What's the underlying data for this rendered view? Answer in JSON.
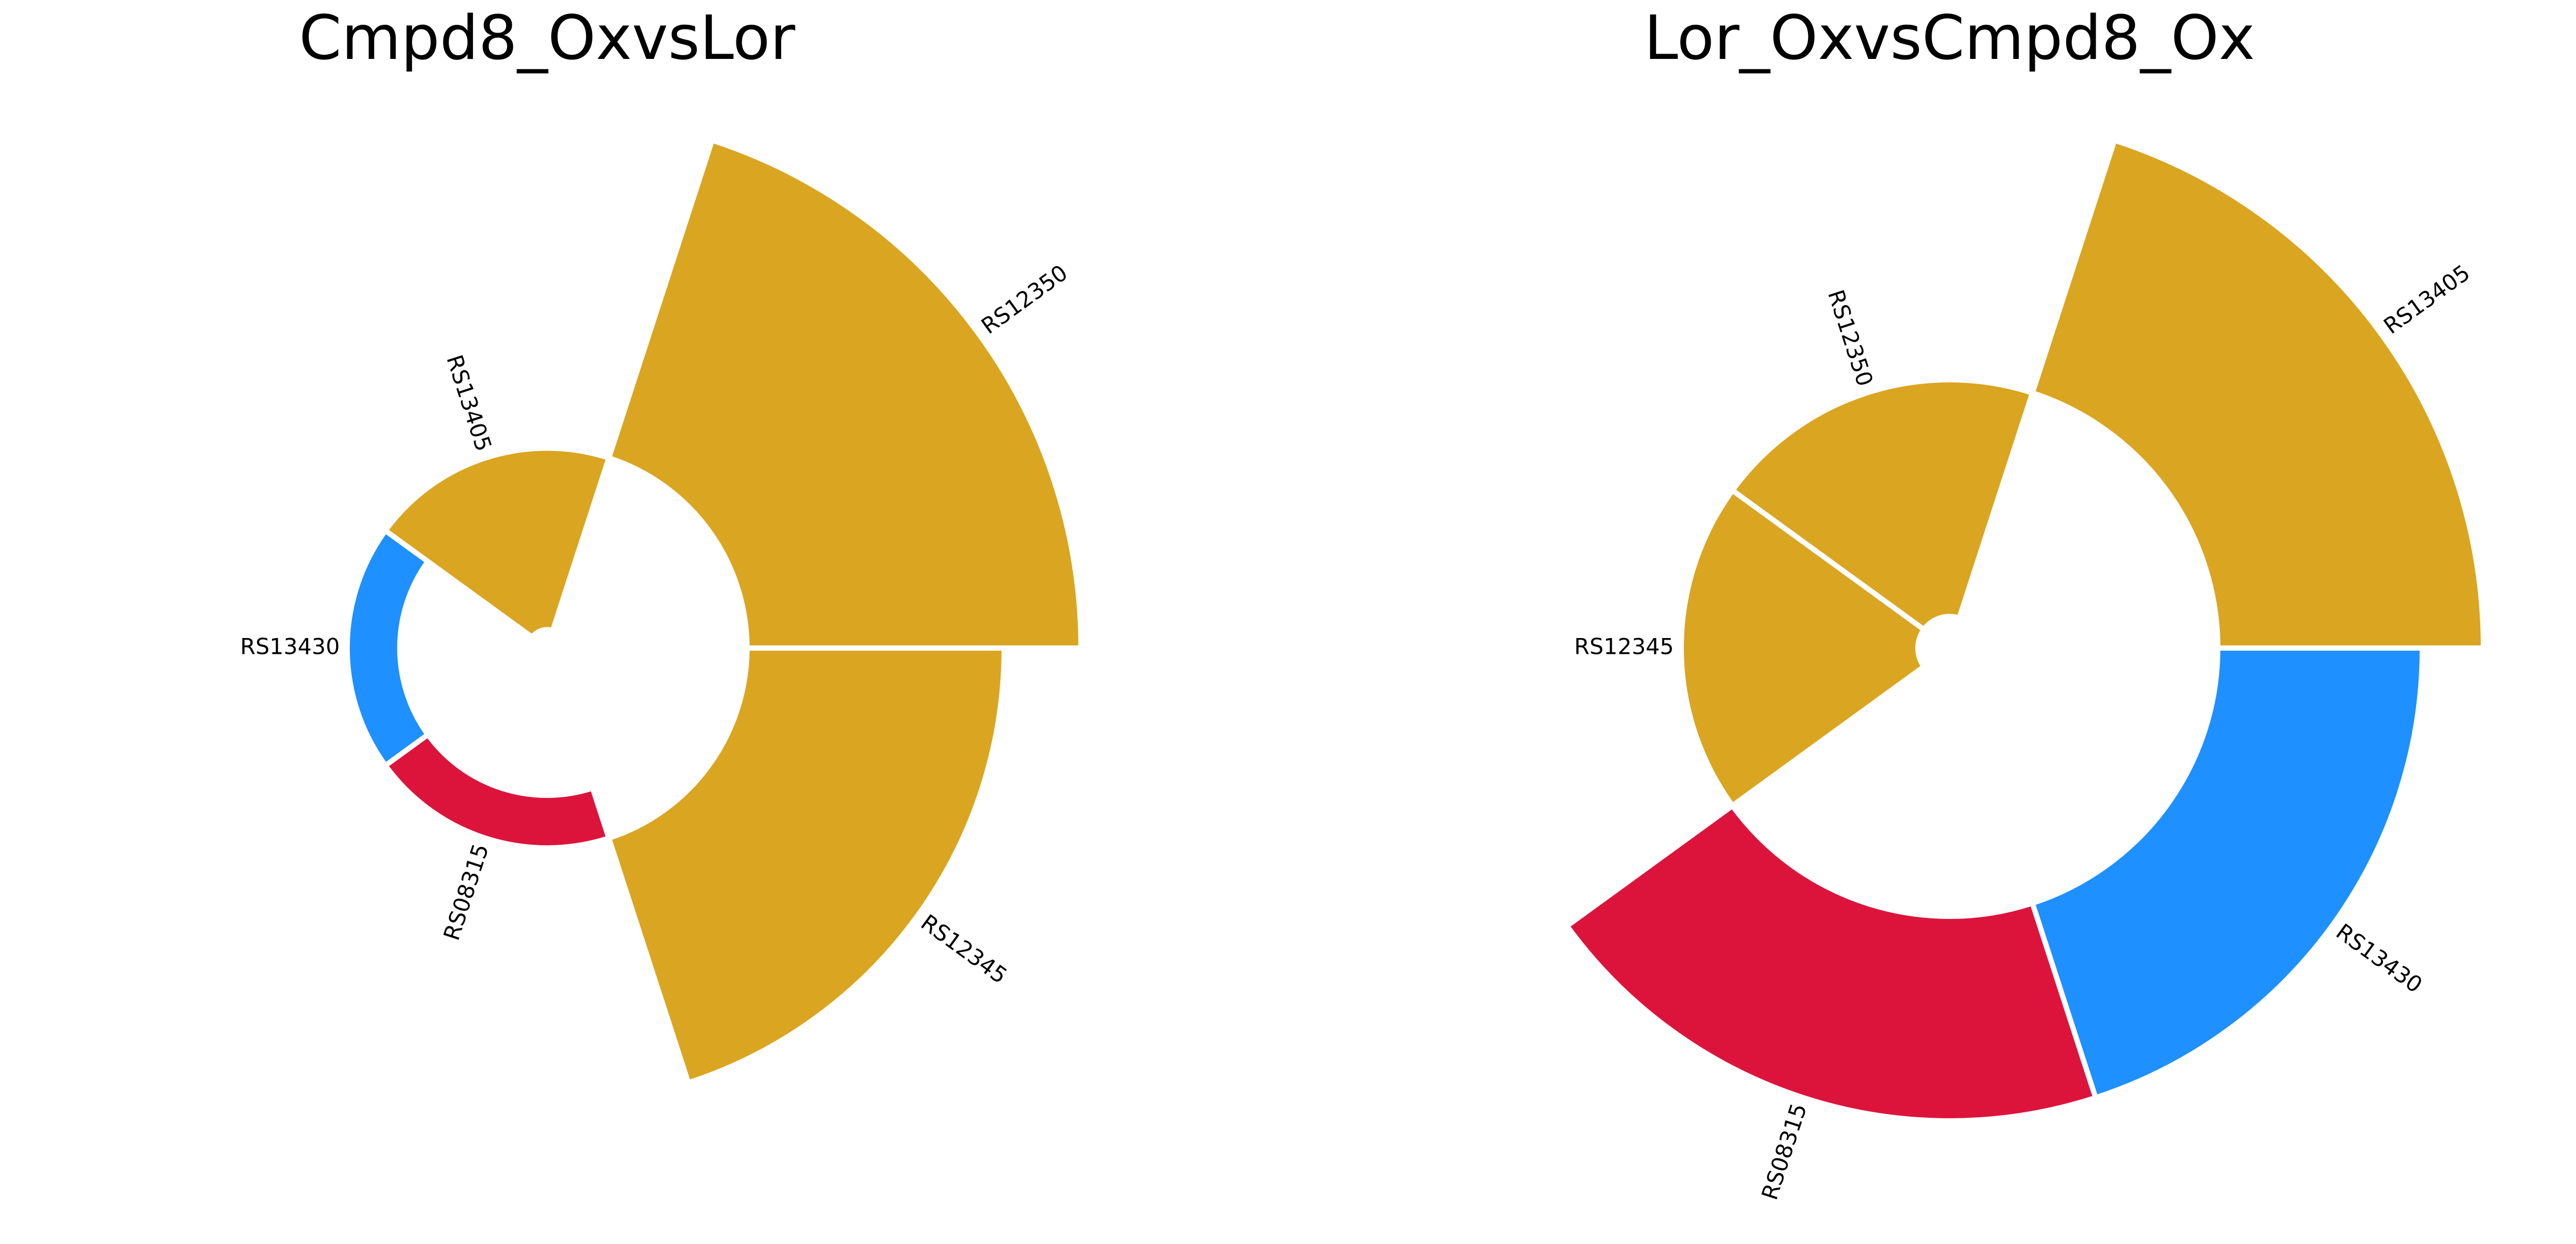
{
  "chart_data": [
    {
      "type": "radial-bar",
      "title": "Cmpd8_OxvsLor",
      "categories": [
        "RS12350",
        "RS12345",
        "RS08315",
        "RS13430",
        "RS13405"
      ],
      "values": [
        1.0,
        0.77,
        0.15,
        0.15,
        0.21
      ],
      "colors": [
        "#DAA520",
        "#DAA520",
        "#DC143C",
        "#1E90FF",
        "#DAA520"
      ]
    },
    {
      "type": "radial-bar",
      "title": "Lor_OxvsCmpd8_Ox",
      "categories": [
        "RS13405",
        "RS13430",
        "RS08315",
        "RS12345",
        "RS12350"
      ],
      "values": [
        1.0,
        0.77,
        0.77,
        0.21,
        0.21
      ],
      "colors": [
        "#DAA520",
        "#1E90FF",
        "#DC143C",
        "#DAA520",
        "#DAA520"
      ]
    }
  ]
}
